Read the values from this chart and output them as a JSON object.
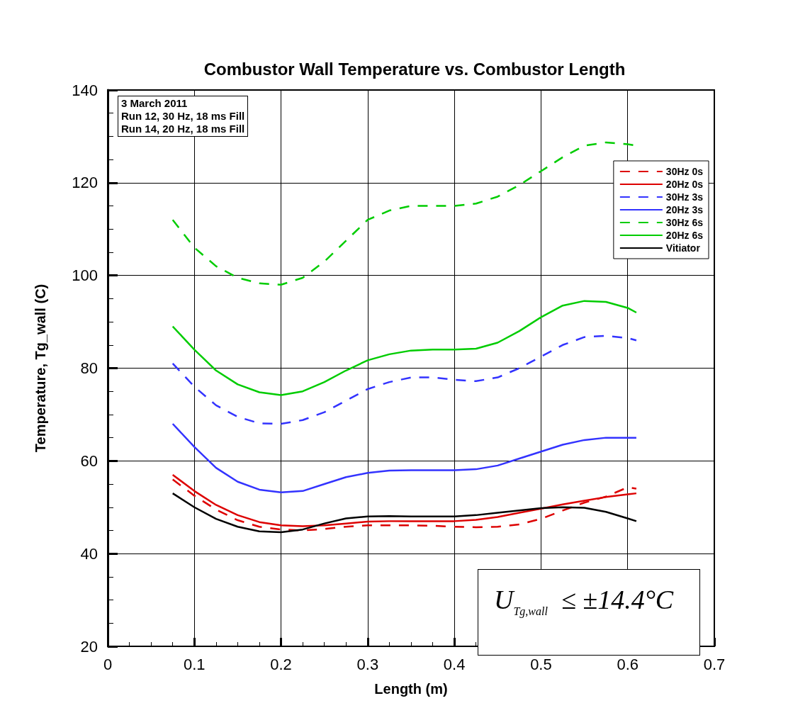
{
  "chart_data": {
    "type": "line",
    "title": "Combustor Wall Temperature vs. Combustor Length",
    "xlabel": "Length (m)",
    "ylabel": "Temperature, Tg_wall (C)",
    "x": [
      0.075,
      0.1,
      0.125,
      0.15,
      0.175,
      0.2,
      0.225,
      0.25,
      0.275,
      0.3,
      0.325,
      0.35,
      0.375,
      0.4,
      0.425,
      0.45,
      0.475,
      0.5,
      0.525,
      0.55,
      0.575,
      0.6,
      0.61
    ],
    "series": [
      {
        "name": "30Hz 0s",
        "color": "#dd0000",
        "line_style": "dashed",
        "values": [
          56,
          52.5,
          49.5,
          47.2,
          45.8,
          45.2,
          45,
          45.3,
          45.8,
          46.1,
          46.1,
          46.1,
          46,
          45.8,
          45.7,
          45.8,
          46.3,
          47.5,
          49.3,
          51,
          52.3,
          54.3,
          54
        ]
      },
      {
        "name": "20Hz 0s",
        "color": "#dd0000",
        "line_style": "solid",
        "values": [
          57,
          53.5,
          50.5,
          48.3,
          46.8,
          46.1,
          45.9,
          46.1,
          46.5,
          46.9,
          47,
          47,
          47,
          47,
          47.3,
          47.9,
          48.8,
          49.7,
          50.6,
          51.4,
          52.2,
          52.8,
          53
        ]
      },
      {
        "name": "30Hz 3s",
        "color": "#3333ff",
        "line_style": "dashed",
        "values": [
          81,
          76,
          72,
          69.5,
          68.1,
          68,
          68.8,
          70.5,
          73,
          75.5,
          77,
          78,
          78,
          77.5,
          77.2,
          78,
          80,
          82.5,
          85,
          86.7,
          87,
          86.5,
          86
        ]
      },
      {
        "name": "20Hz 3s",
        "color": "#3333ff",
        "line_style": "solid",
        "values": [
          68,
          63,
          58.5,
          55.5,
          53.8,
          53.2,
          53.5,
          55,
          56.5,
          57.4,
          57.9,
          58,
          58,
          58,
          58.2,
          59,
          60.5,
          62,
          63.5,
          64.5,
          65,
          65,
          65
        ]
      },
      {
        "name": "30Hz 6s",
        "color": "#00cc00",
        "line_style": "dashed",
        "values": [
          112,
          106,
          102,
          99.5,
          98.3,
          98,
          99.5,
          103,
          107.5,
          112,
          114,
          115,
          115,
          115,
          115.5,
          117,
          119.5,
          122.5,
          125.5,
          128,
          128.7,
          128.3,
          128
        ]
      },
      {
        "name": "20Hz 6s",
        "color": "#00cc00",
        "line_style": "solid",
        "values": [
          89,
          84,
          79.5,
          76.5,
          74.8,
          74.2,
          75,
          77,
          79.5,
          81.7,
          83,
          83.8,
          84,
          84,
          84.2,
          85.5,
          88,
          91,
          93.5,
          94.5,
          94.3,
          93,
          92
        ]
      },
      {
        "name": "Vitiator",
        "color": "#000000",
        "line_style": "solid",
        "values": [
          53,
          50,
          47.5,
          45.8,
          44.8,
          44.6,
          45.2,
          46.5,
          47.6,
          48,
          48.1,
          48,
          48,
          48,
          48.3,
          48.8,
          49.3,
          49.8,
          50,
          49.9,
          49,
          47.6,
          47
        ]
      }
    ],
    "xlim": [
      0,
      0.7
    ],
    "xticks": [
      0,
      0.1,
      0.2,
      0.3,
      0.4,
      0.5,
      0.6,
      0.7
    ],
    "ylim": [
      20,
      140
    ],
    "yticks": [
      20,
      40,
      60,
      80,
      100,
      120,
      140
    ],
    "grid": true,
    "legend": "top right",
    "marker": "none",
    "annotations": [
      "3 March 2011",
      "Run 12, 30 Hz, 18 ms Fill",
      "Run 14, 20 Hz, 18 ms Fill",
      "U$_{Tg,wall}$  ≤ ±14.4°C"
    ]
  }
}
